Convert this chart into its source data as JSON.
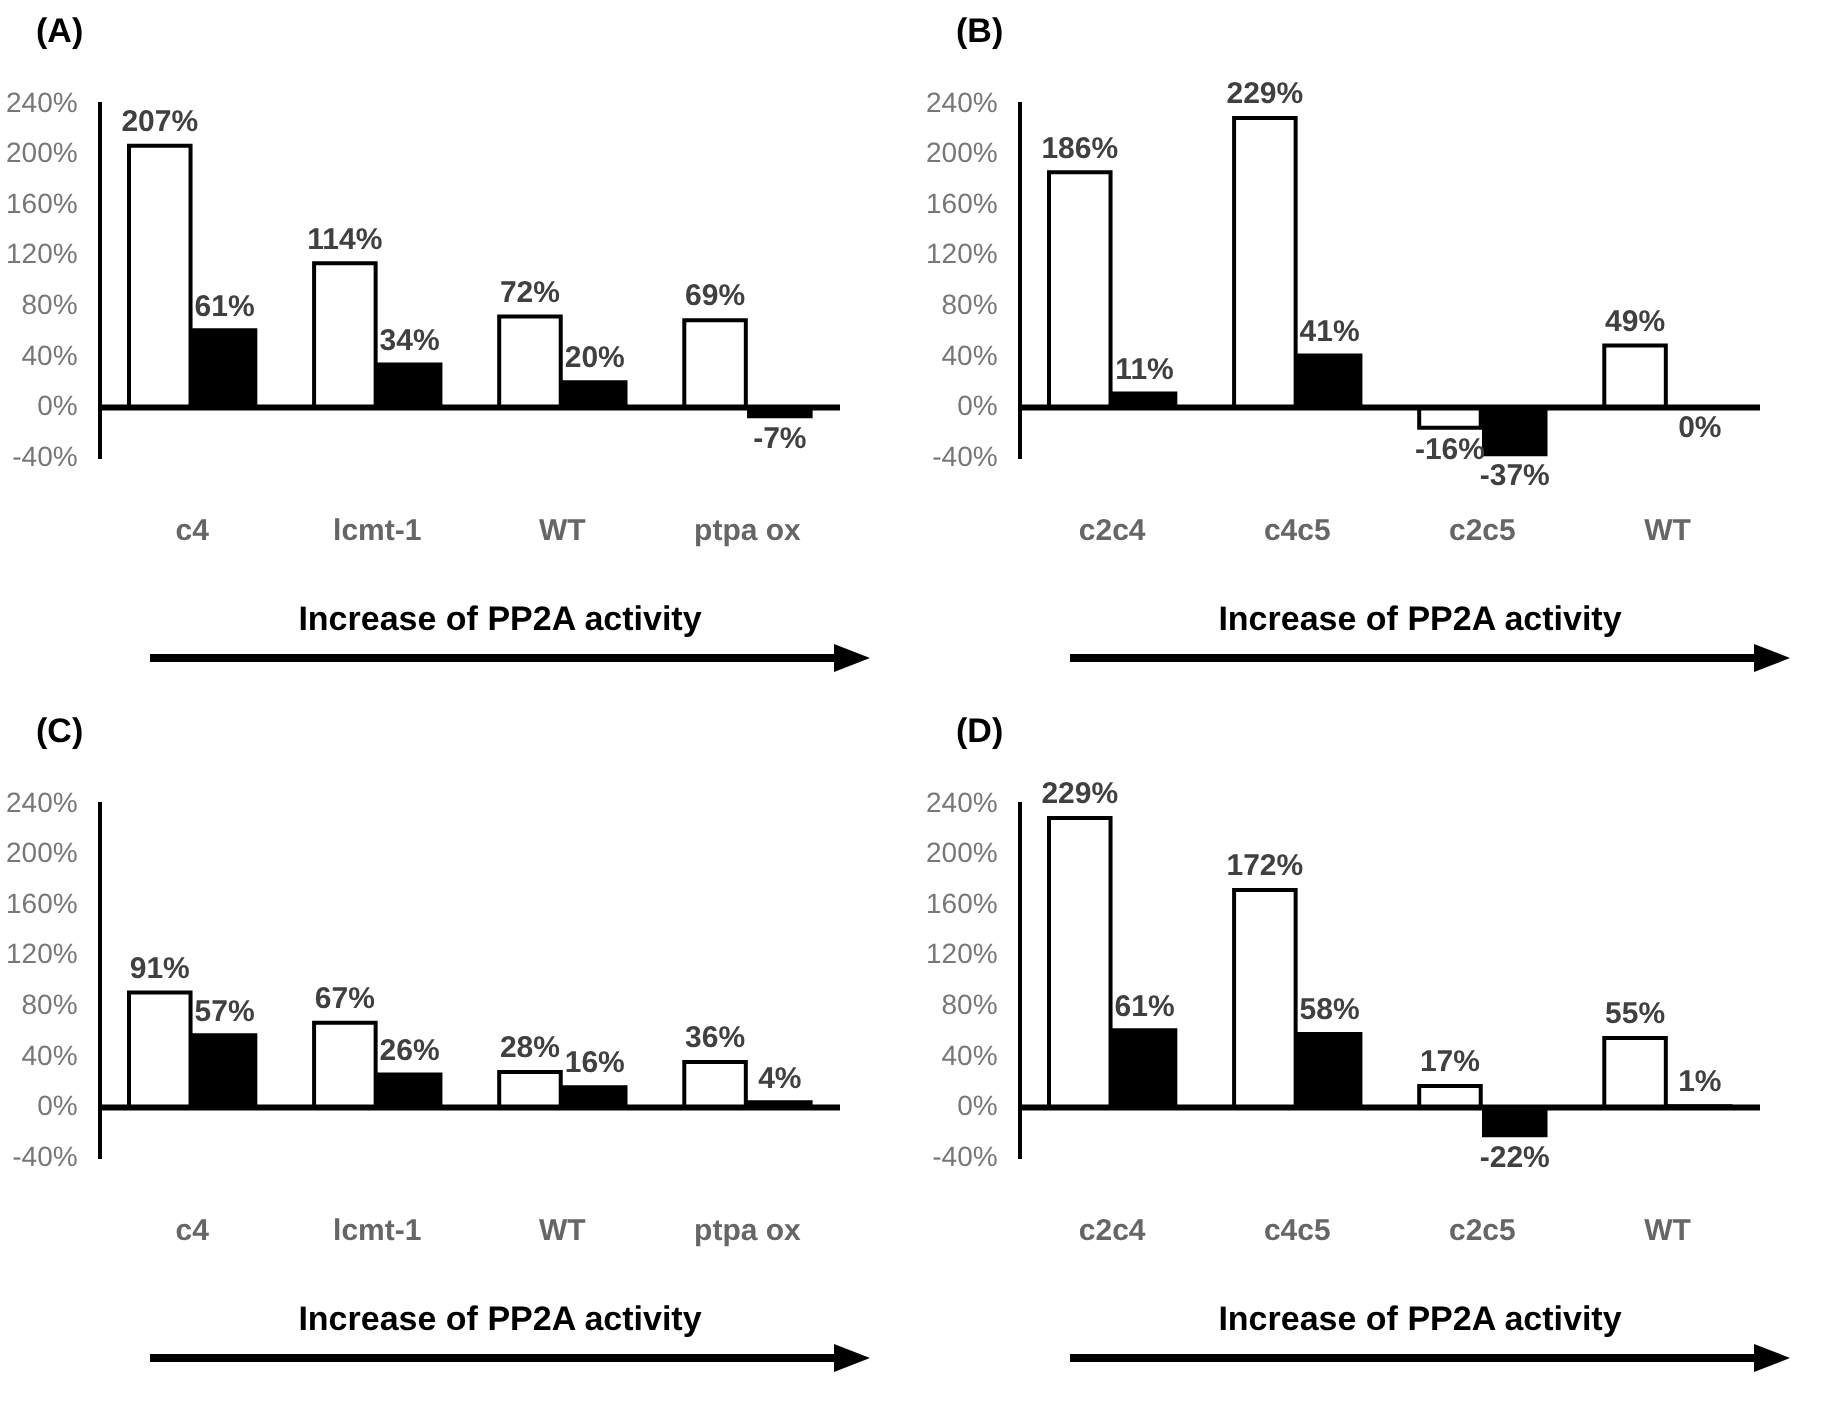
{
  "chart_data": [
    {
      "type": "bar",
      "ref_lines": [
        {
          "axis": "y",
          "value": 0,
          "color": "#000000"
        }
      ],
      "title": "(A)",
      "xlabel": "Increase of PP2A activity",
      "categories": [
        "c4",
        "lcmt-1",
        "WT",
        "ptpa ox"
      ],
      "legend": false,
      "grid": false,
      "ylim": [
        -40,
        240
      ],
      "yticks": [
        {
          "value": -40,
          "label": "-40%"
        },
        {
          "value": 0,
          "label": "0%"
        },
        {
          "value": 40,
          "label": "40%"
        },
        {
          "value": 80,
          "label": "80%"
        },
        {
          "value": 120,
          "label": "120%"
        },
        {
          "value": 160,
          "label": "160%"
        },
        {
          "value": 200,
          "label": "200%"
        },
        {
          "value": 240,
          "label": "240%"
        }
      ],
      "series": [
        {
          "color": "#ffffff",
          "values": [
            207,
            114,
            72,
            69
          ],
          "value_labels": [
            "207%",
            "114%",
            "72%",
            "69%"
          ]
        },
        {
          "color": "#000000",
          "values": [
            61,
            34,
            20,
            -7
          ],
          "value_labels": [
            "61%",
            "34%",
            "20%",
            "-7%"
          ]
        }
      ]
    },
    {
      "type": "bar",
      "ref_lines": [
        {
          "axis": "y",
          "value": 0,
          "color": "#000000"
        }
      ],
      "title": "(B)",
      "xlabel": "Increase of PP2A activity",
      "categories": [
        "c2c4",
        "c4c5",
        "c2c5",
        "WT"
      ],
      "legend": false,
      "grid": false,
      "ylim": [
        -40,
        240
      ],
      "yticks": [
        {
          "value": -40,
          "label": "-40%"
        },
        {
          "value": 0,
          "label": "0%"
        },
        {
          "value": 40,
          "label": "40%"
        },
        {
          "value": 80,
          "label": "80%"
        },
        {
          "value": 120,
          "label": "120%"
        },
        {
          "value": 160,
          "label": "160%"
        },
        {
          "value": 200,
          "label": "200%"
        },
        {
          "value": 240,
          "label": "240%"
        }
      ],
      "series": [
        {
          "color": "#ffffff",
          "values": [
            186,
            229,
            -16,
            49
          ],
          "value_labels": [
            "186%",
            "229%",
            "-16%",
            "49%"
          ]
        },
        {
          "color": "#000000",
          "values": [
            11,
            41,
            -37,
            0
          ],
          "value_labels": [
            "11%",
            "41%",
            "-37%",
            "0%"
          ]
        }
      ]
    },
    {
      "type": "bar",
      "ref_lines": [
        {
          "axis": "y",
          "value": 0,
          "color": "#000000"
        }
      ],
      "title": "(C)",
      "xlabel": "Increase of PP2A activity",
      "categories": [
        "c4",
        "lcmt-1",
        "WT",
        "ptpa ox"
      ],
      "legend": false,
      "grid": false,
      "ylim": [
        -40,
        240
      ],
      "yticks": [
        {
          "value": -40,
          "label": "-40%"
        },
        {
          "value": 0,
          "label": "0%"
        },
        {
          "value": 40,
          "label": "40%"
        },
        {
          "value": 80,
          "label": "80%"
        },
        {
          "value": 120,
          "label": "120%"
        },
        {
          "value": 160,
          "label": "160%"
        },
        {
          "value": 200,
          "label": "200%"
        },
        {
          "value": 240,
          "label": "240%"
        }
      ],
      "series": [
        {
          "color": "#ffffff",
          "values": [
            91,
            67,
            28,
            36
          ],
          "value_labels": [
            "91%",
            "67%",
            "28%",
            "36%"
          ]
        },
        {
          "color": "#000000",
          "values": [
            57,
            26,
            16,
            4
          ],
          "value_labels": [
            "57%",
            "26%",
            "16%",
            "4%"
          ]
        }
      ]
    },
    {
      "type": "bar",
      "ref_lines": [
        {
          "axis": "y",
          "value": 0,
          "color": "#000000"
        }
      ],
      "title": "(D)",
      "xlabel": "Increase of PP2A activity",
      "categories": [
        "c2c4",
        "c4c5",
        "c2c5",
        "WT"
      ],
      "legend": false,
      "grid": false,
      "ylim": [
        -40,
        240
      ],
      "yticks": [
        {
          "value": -40,
          "label": "-40%"
        },
        {
          "value": 0,
          "label": "0%"
        },
        {
          "value": 40,
          "label": "40%"
        },
        {
          "value": 80,
          "label": "80%"
        },
        {
          "value": 120,
          "label": "120%"
        },
        {
          "value": 160,
          "label": "160%"
        },
        {
          "value": 200,
          "label": "200%"
        },
        {
          "value": 240,
          "label": "240%"
        }
      ],
      "series": [
        {
          "color": "#ffffff",
          "values": [
            229,
            172,
            17,
            55
          ],
          "value_labels": [
            "229%",
            "172%",
            "17%",
            "55%"
          ]
        },
        {
          "color": "#000000",
          "values": [
            61,
            58,
            -22,
            1
          ],
          "value_labels": [
            "61%",
            "58%",
            "-22%",
            "1%"
          ]
        }
      ]
    }
  ]
}
